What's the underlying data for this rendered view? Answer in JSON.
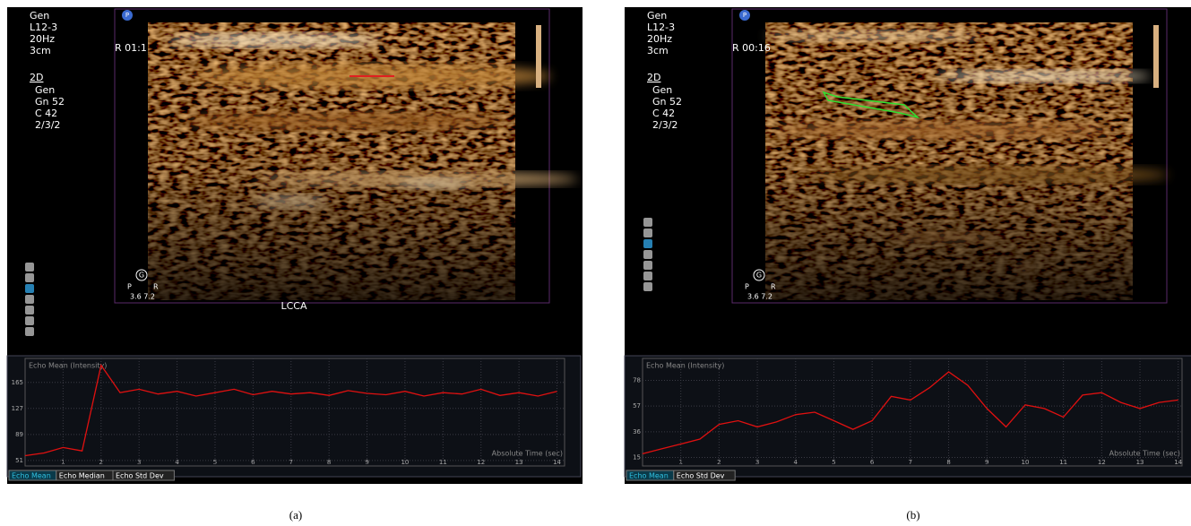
{
  "panels": [
    {
      "badge": "P",
      "info_lines": [
        "Gen",
        "L12-3",
        "20Hz",
        "3cm"
      ],
      "mode": "2D",
      "mode_lines": [
        "Gen",
        "Gn 52",
        "C 42",
        "2/3/2"
      ],
      "timer": "R 01:1",
      "probe_left": "P",
      "probe_icon": "G",
      "probe_right": "R",
      "probe_values": "3.6 7.2",
      "image_label": "LCCA",
      "tabs": [
        "Echo Mean",
        "Echo Median",
        "Echo Std Dev"
      ],
      "caption": "(a)"
    },
    {
      "badge": "P",
      "info_lines": [
        "Gen",
        "L12-3",
        "20Hz",
        "3cm"
      ],
      "mode": "2D",
      "mode_lines": [
        "Gen",
        "Gn 52",
        "C 42",
        "2/3/2"
      ],
      "timer": "R 00:16",
      "probe_left": "P",
      "probe_icon": "G",
      "probe_right": "R",
      "probe_values": "3.6 7.2",
      "tabs": [
        "Echo Mean",
        "Echo Std Dev"
      ],
      "caption": "(b)"
    }
  ],
  "chart_data": [
    {
      "type": "line",
      "title": "Echo Mean (Intensity)",
      "x_label": "Absolute Time (sec)",
      "color": "#e01010",
      "grid": true,
      "x": [
        0,
        0.5,
        1,
        1.5,
        2,
        2.5,
        3,
        3.5,
        4,
        4.5,
        5,
        5.5,
        6,
        6.5,
        7,
        7.5,
        8,
        8.5,
        9,
        9.5,
        10,
        10.5,
        11,
        11.5,
        12,
        12.5,
        13,
        13.5,
        14
      ],
      "values": [
        58,
        62,
        70,
        65,
        190,
        150,
        155,
        148,
        152,
        145,
        150,
        155,
        147,
        152,
        148,
        150,
        146,
        153,
        149,
        147,
        152,
        145,
        150,
        148,
        155,
        146,
        150,
        145,
        152
      ],
      "xlim": [
        0,
        14.2
      ],
      "xticks": [
        1,
        2,
        3,
        4,
        5,
        6,
        7,
        8,
        9,
        10,
        11,
        12,
        13,
        14
      ],
      "ylim": [
        43,
        200
      ],
      "yticks": [
        51,
        89,
        127,
        165
      ]
    },
    {
      "type": "line",
      "title": "Echo Mean (Intensity)",
      "x_label": "Absolute Time (sec)",
      "color": "#e01010",
      "grid": true,
      "x": [
        0,
        0.5,
        1,
        1.5,
        2,
        2.5,
        3,
        3.5,
        4,
        4.5,
        5,
        5.5,
        6,
        6.5,
        7,
        7.5,
        8,
        8.5,
        9,
        9.5,
        10,
        10.5,
        11,
        11.5,
        12,
        12.5,
        13,
        13.5,
        14
      ],
      "values": [
        18,
        22,
        26,
        30,
        42,
        45,
        40,
        44,
        50,
        52,
        45,
        38,
        45,
        65,
        62,
        72,
        85,
        74,
        55,
        40,
        58,
        55,
        48,
        66,
        68,
        60,
        55,
        60,
        62
      ],
      "xlim": [
        0,
        14.1
      ],
      "xticks": [
        1,
        2,
        3,
        4,
        5,
        6,
        7,
        8,
        9,
        10,
        11,
        12,
        13,
        14
      ],
      "ylim": [
        8,
        96
      ],
      "yticks": [
        15,
        36,
        57,
        78
      ]
    }
  ]
}
